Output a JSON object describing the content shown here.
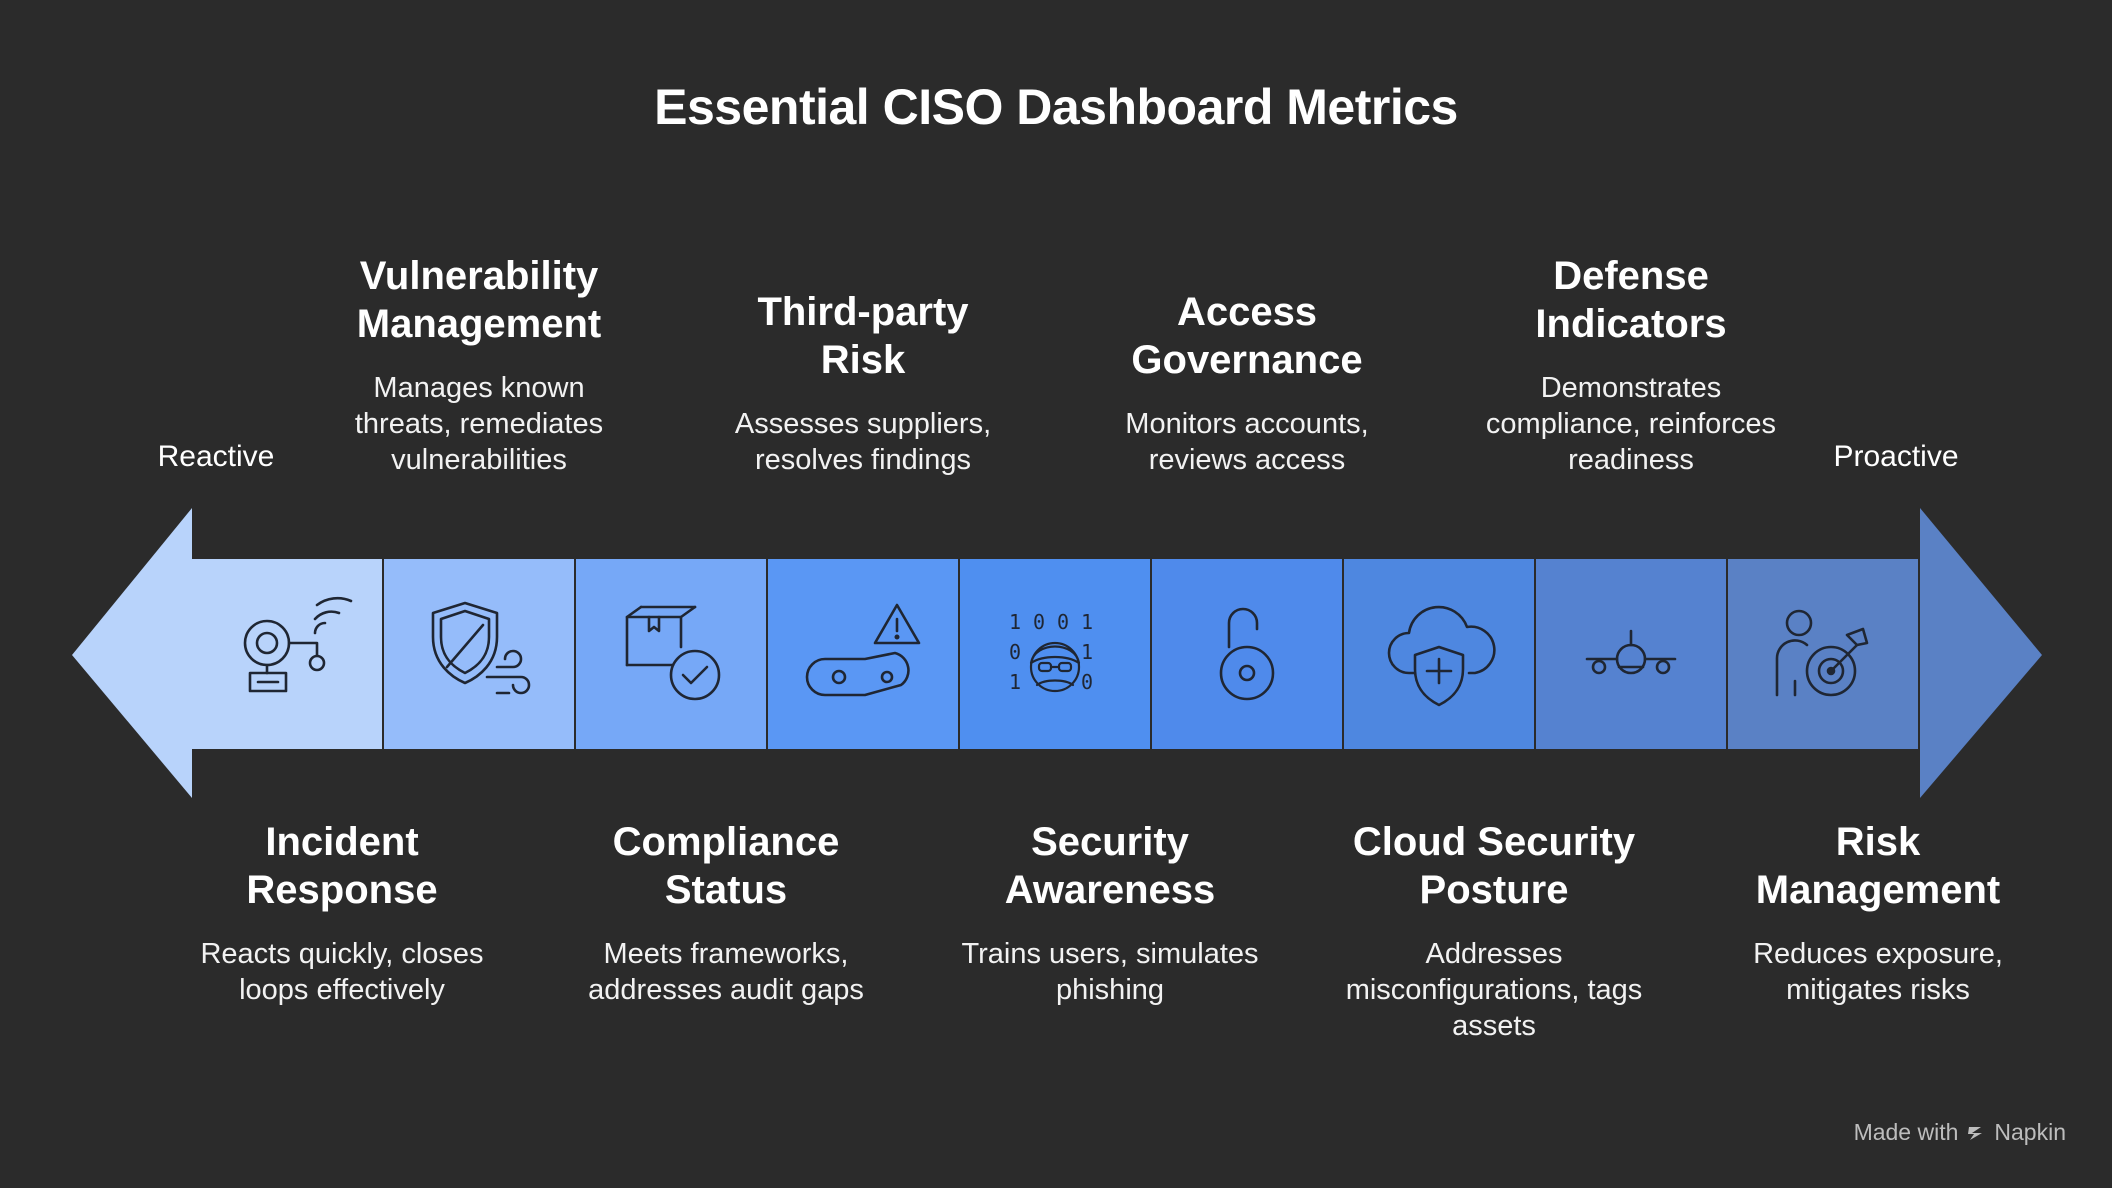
{
  "title": "Essential CISO Dashboard Metrics",
  "ends": {
    "left": "Reactive",
    "right": "Proactive"
  },
  "segments": [
    {
      "heading": "Incident Response",
      "desc": "Reacts quickly, closes loops effectively",
      "icon": "alarm-bell-icon",
      "color": "#b8d3fb",
      "position": "bottom"
    },
    {
      "heading": "Vulnerability Management",
      "desc": "Manages known threats, remediates vulnerabilities",
      "icon": "shield-wind-icon",
      "color": "#95bcfa",
      "position": "top"
    },
    {
      "heading": "Compliance Status",
      "desc": "Meets frameworks, addresses audit gaps",
      "icon": "package-check-icon",
      "color": "#76a8f7",
      "position": "bottom"
    },
    {
      "heading": "Third-party Risk",
      "desc": "Assesses suppliers, resolves findings",
      "icon": "conveyor-warning-icon",
      "color": "#5a97f4",
      "position": "top"
    },
    {
      "heading": "Security Awareness",
      "desc": "Trains users, simulates phishing",
      "icon": "hacker-binary-icon",
      "color": "#4f8ff0",
      "position": "bottom"
    },
    {
      "heading": "Access Governance",
      "desc": "Monitors accounts, reviews access",
      "icon": "padlock-icon",
      "color": "#4f8aeb",
      "position": "top"
    },
    {
      "heading": "Cloud Security Posture",
      "desc": "Addresses misconfigurations, tags assets",
      "icon": "cloud-shield-icon",
      "color": "#4e87e0",
      "position": "bottom"
    },
    {
      "heading": "Defense Indicators",
      "desc": "Demonstrates compliance, reinforces readiness",
      "icon": "aircraft-target-icon",
      "color": "#5582d0",
      "position": "top"
    },
    {
      "heading": "Risk Management",
      "desc": "Reduces exposure, mitigates risks",
      "icon": "person-target-icon",
      "color": "#5a81c5",
      "position": "bottom"
    }
  ],
  "arrow_colors": {
    "left_head": "#b8d3fb",
    "right_head": "#5a81c5"
  },
  "watermark": {
    "prefix": "Made with",
    "brand": "Napkin"
  }
}
